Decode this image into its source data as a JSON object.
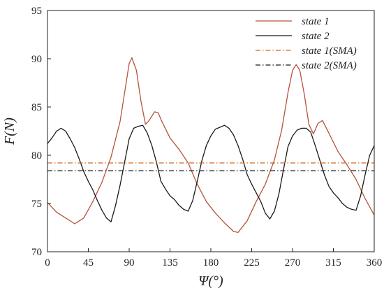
{
  "chart_data": {
    "type": "line",
    "title": "",
    "xlabel": "Ψ(°)",
    "ylabel": "F(N)",
    "xlim": [
      0,
      360
    ],
    "ylim": [
      70,
      95
    ],
    "xticks": [
      0,
      45,
      90,
      135,
      180,
      225,
      270,
      315,
      360
    ],
    "yticks": [
      70,
      75,
      80,
      85,
      90,
      95
    ],
    "grid": false,
    "legend_position": "top-right",
    "series": [
      {
        "name": "state 1",
        "style": "solid",
        "color": "#b5533b",
        "x": [
          0,
          10,
          20,
          30,
          40,
          50,
          60,
          70,
          80,
          85,
          90,
          93,
          98,
          103,
          108,
          112,
          118,
          122,
          126,
          135,
          145,
          155,
          165,
          175,
          185,
          195,
          205,
          210,
          220,
          230,
          240,
          250,
          258,
          265,
          270,
          274,
          278,
          283,
          288,
          293,
          298,
          303,
          310,
          320,
          330,
          340,
          350,
          360
        ],
        "y": [
          75.1,
          74.1,
          73.5,
          72.9,
          73.5,
          75.2,
          77.2,
          79.8,
          83.5,
          86.5,
          89.5,
          90.1,
          88.8,
          85.6,
          83.2,
          83.6,
          84.5,
          84.4,
          83.5,
          81.8,
          80.6,
          79.2,
          77.0,
          75.2,
          74.0,
          73.0,
          72.1,
          72.0,
          73.2,
          75.2,
          77.0,
          79.5,
          82.6,
          86.5,
          88.8,
          89.4,
          88.8,
          86.3,
          83.2,
          82.2,
          83.3,
          83.6,
          82.3,
          80.4,
          79.0,
          77.5,
          75.5,
          73.8
        ]
      },
      {
        "name": "state 2",
        "style": "solid",
        "color": "#1a1a1a",
        "x": [
          0,
          5,
          10,
          15,
          20,
          25,
          30,
          35,
          40,
          45,
          50,
          55,
          60,
          65,
          70,
          75,
          80,
          85,
          90,
          95,
          100,
          105,
          110,
          115,
          120,
          125,
          130,
          135,
          140,
          145,
          150,
          155,
          160,
          165,
          170,
          175,
          180,
          185,
          190,
          195,
          200,
          205,
          210,
          215,
          220,
          225,
          230,
          235,
          240,
          245,
          250,
          255,
          260,
          265,
          270,
          275,
          280,
          285,
          290,
          295,
          300,
          305,
          310,
          315,
          320,
          325,
          330,
          335,
          340,
          345,
          350,
          355,
          360
        ],
        "y": [
          81.2,
          81.8,
          82.5,
          82.8,
          82.5,
          81.7,
          80.8,
          79.6,
          78.3,
          77.3,
          76.4,
          75.3,
          74.3,
          73.5,
          73.1,
          74.8,
          76.9,
          79.3,
          81.7,
          82.8,
          83.0,
          83.1,
          82.3,
          81.0,
          79.3,
          77.3,
          76.5,
          75.8,
          75.4,
          74.8,
          74.4,
          74.2,
          75.3,
          77.3,
          79.4,
          81.0,
          82.0,
          82.7,
          82.9,
          83.1,
          82.8,
          82.1,
          81.0,
          79.6,
          78.0,
          77.0,
          76.1,
          75.2,
          74.0,
          73.4,
          74.2,
          76.0,
          78.5,
          80.9,
          82.0,
          82.6,
          82.8,
          82.8,
          82.4,
          81.0,
          79.5,
          78.0,
          76.8,
          76.1,
          75.6,
          75.0,
          74.6,
          74.4,
          74.3,
          75.8,
          78.0,
          80.0,
          81.0
        ]
      },
      {
        "name": "state 1(SMA)",
        "style": "dash-dot",
        "color": "#d2691e",
        "x": [
          0,
          360
        ],
        "y": [
          79.2,
          79.2
        ]
      },
      {
        "name": "state 2(SMA)",
        "style": "dash-dot",
        "color": "#1a1a1a",
        "x": [
          0,
          360
        ],
        "y": [
          78.4,
          78.4
        ]
      }
    ]
  }
}
